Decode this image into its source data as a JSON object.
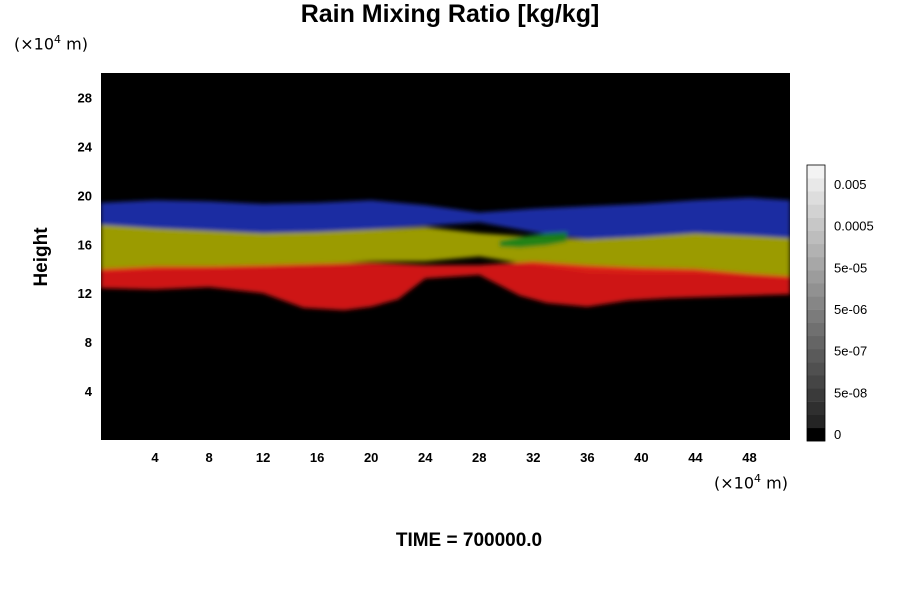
{
  "chart_data": {
    "type": "heatmap",
    "title": "Rain Mixing Ratio [kg/kg]",
    "ylabel": "Height",
    "x_unit": {
      "pre": "(×10",
      "exp": "4",
      "post": " m)"
    },
    "y_unit": {
      "pre": "(×10",
      "exp": "4",
      "post": " m)"
    },
    "xlim": [
      0,
      51
    ],
    "ylim": [
      0,
      30
    ],
    "x_ticks": [
      4,
      8,
      12,
      16,
      20,
      24,
      28,
      32,
      36,
      40,
      44,
      48
    ],
    "y_ticks": [
      4,
      8,
      12,
      16,
      20,
      24,
      28
    ],
    "colorbar": {
      "labels": [
        "0",
        "5e-08",
        "5e-07",
        "5e-06",
        "5e-05",
        "0.0005",
        "0.005"
      ],
      "levels": 21
    },
    "colors": {
      "background": "#000000",
      "blue": "#2030b0",
      "yellow": "#a8a800",
      "green": "#18801a",
      "red": "#e01818"
    },
    "layers": [
      {
        "name": "blue",
        "color": "#2030b0",
        "bottom": [
          [
            0,
            17.4
          ],
          [
            4,
            17.1
          ],
          [
            8,
            17.0
          ],
          [
            12,
            16.8
          ],
          [
            16,
            16.9
          ],
          [
            20,
            17.2
          ],
          [
            24,
            17.5
          ],
          [
            28,
            17.8
          ],
          [
            32,
            17.0
          ],
          [
            36,
            16.4
          ],
          [
            40,
            16.6
          ],
          [
            44,
            16.9
          ],
          [
            48,
            16.6
          ],
          [
            51,
            16.4
          ]
        ],
        "top": [
          [
            0,
            19.4
          ],
          [
            4,
            19.6
          ],
          [
            8,
            19.5
          ],
          [
            12,
            19.3
          ],
          [
            16,
            19.4
          ],
          [
            20,
            19.6
          ],
          [
            24,
            19.2
          ],
          [
            28,
            18.6
          ],
          [
            32,
            18.9
          ],
          [
            36,
            19.1
          ],
          [
            40,
            19.3
          ],
          [
            44,
            19.6
          ],
          [
            48,
            19.8
          ],
          [
            51,
            19.6
          ]
        ]
      },
      {
        "name": "yellow",
        "color": "#a8a800",
        "bottom": [
          [
            0,
            13.7
          ],
          [
            4,
            13.9
          ],
          [
            8,
            14.0
          ],
          [
            12,
            14.1
          ],
          [
            16,
            14.3
          ],
          [
            20,
            14.6
          ],
          [
            24,
            14.6
          ],
          [
            28,
            15.0
          ],
          [
            32,
            14.3
          ],
          [
            36,
            13.7
          ],
          [
            40,
            13.6
          ],
          [
            44,
            13.6
          ],
          [
            48,
            13.4
          ],
          [
            51,
            13.2
          ]
        ],
        "top": [
          [
            0,
            17.6
          ],
          [
            4,
            17.3
          ],
          [
            8,
            17.1
          ],
          [
            12,
            16.9
          ],
          [
            16,
            17.0
          ],
          [
            20,
            17.2
          ],
          [
            24,
            17.4
          ],
          [
            28,
            16.9
          ],
          [
            32,
            16.6
          ],
          [
            36,
            16.4
          ],
          [
            40,
            16.6
          ],
          [
            44,
            16.9
          ],
          [
            48,
            16.7
          ],
          [
            51,
            16.5
          ]
        ]
      },
      {
        "name": "red",
        "color": "#e01818",
        "bottom": [
          [
            0,
            12.4
          ],
          [
            4,
            12.3
          ],
          [
            8,
            12.5
          ],
          [
            12,
            12.0
          ],
          [
            15,
            10.8
          ],
          [
            18,
            10.6
          ],
          [
            20,
            10.9
          ],
          [
            22,
            11.5
          ],
          [
            24,
            13.2
          ],
          [
            28,
            13.5
          ],
          [
            31,
            11.8
          ],
          [
            33,
            11.2
          ],
          [
            36,
            10.9
          ],
          [
            39,
            11.4
          ],
          [
            42,
            11.6
          ],
          [
            45,
            11.7
          ],
          [
            48,
            11.8
          ],
          [
            51,
            11.9
          ]
        ],
        "top": [
          [
            0,
            14.0
          ],
          [
            4,
            14.2
          ],
          [
            8,
            14.2
          ],
          [
            12,
            14.3
          ],
          [
            16,
            14.4
          ],
          [
            20,
            14.5
          ],
          [
            24,
            14.3
          ],
          [
            28,
            14.3
          ],
          [
            32,
            14.6
          ],
          [
            36,
            14.3
          ],
          [
            40,
            14.1
          ],
          [
            44,
            14.0
          ],
          [
            48,
            13.6
          ],
          [
            51,
            13.4
          ]
        ]
      },
      {
        "name": "green",
        "color": "#18801a",
        "bottom": [
          [
            29.5,
            15.8
          ],
          [
            31,
            15.7
          ],
          [
            33,
            15.9
          ],
          [
            34.5,
            16.2
          ]
        ],
        "top": [
          [
            29.5,
            16.3
          ],
          [
            31,
            16.6
          ],
          [
            33,
            16.9
          ],
          [
            34.5,
            17.0
          ]
        ]
      }
    ],
    "grid": false,
    "legend": "colorbar-right"
  },
  "time_label": "TIME = 700000.0"
}
